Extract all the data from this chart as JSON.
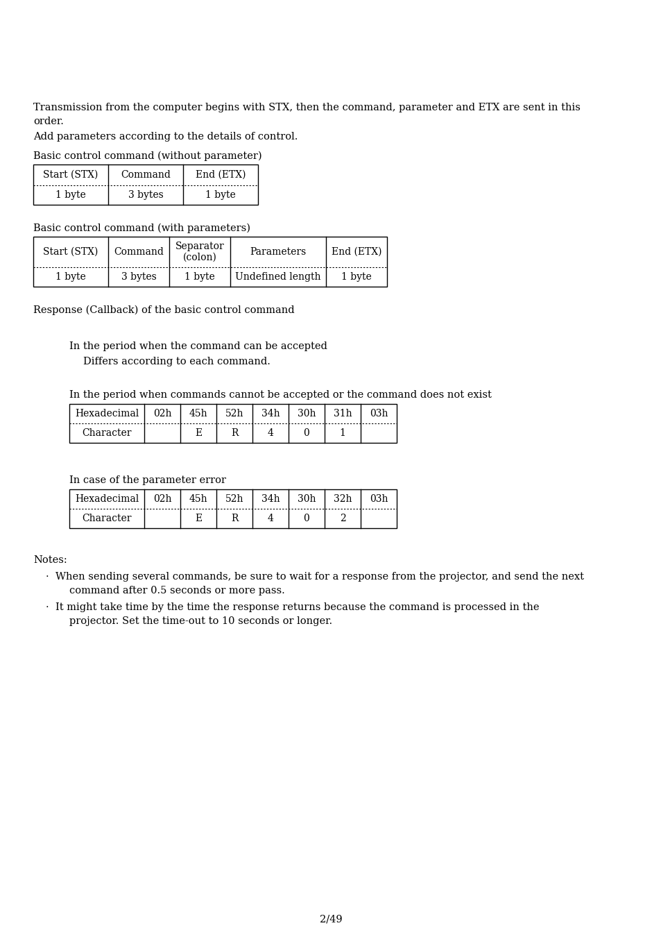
{
  "bg_color": "#ffffff",
  "text_color": "#000000",
  "font_size_body": 10.5,
  "font_size_small": 10.0,
  "page_number": "2/49",
  "section1_title": "Basic control command (without parameter)",
  "table1_headers": [
    "Start (STX)",
    "Command",
    "End (ETX)"
  ],
  "table1_row": [
    "1 byte",
    "3 bytes",
    "1 byte"
  ],
  "section2_title": "Basic control command (with parameters)",
  "table2_row": [
    "1 byte",
    "3 bytes",
    "1 byte",
    "Undefined length",
    "1 byte"
  ],
  "section3_title": "Response (Callback) of the basic control command",
  "subsection1": "In the period when the command can be accepted",
  "subsection1_detail": "Differs according to each command.",
  "subsection2": "In the period when commands cannot be accepted or the command does not exist",
  "table3_headers": [
    "Hexadecimal",
    "02h",
    "45h",
    "52h",
    "34h",
    "30h",
    "31h",
    "03h"
  ],
  "table3_row": [
    "Character",
    "",
    "E",
    "R",
    "4",
    "0",
    "1",
    ""
  ],
  "subsection3": "In case of the parameter error",
  "table4_headers": [
    "Hexadecimal",
    "02h",
    "45h",
    "52h",
    "34h",
    "30h",
    "32h",
    "03h"
  ],
  "table4_row": [
    "Character",
    "",
    "E",
    "R",
    "4",
    "0",
    "2",
    ""
  ],
  "notes_title": "Notes:",
  "note1_line1": "When sending several commands, be sure to wait for a response from the projector, and send the next",
  "note1_line2": "command after 0.5 seconds or more pass.",
  "note2_line1": "It might take time by the time the response returns because the command is processed in the",
  "note2_line2": "projector. Set the time-out to 10 seconds or longer.",
  "para1_line1": "Transmission from the computer begins with STX, then the command, parameter and ETX are sent in this",
  "para1_line2": "order.",
  "para2": "Add parameters according to the details of control."
}
